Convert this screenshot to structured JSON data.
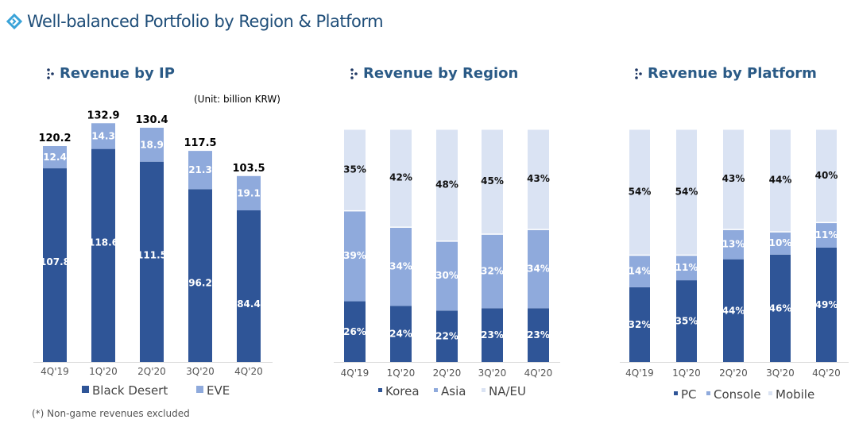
{
  "page": {
    "title": "Well-balanced Portfolio by Region & Platform",
    "footnote": "(*) Non-game revenues excluded",
    "colors": {
      "title": "#1f4e79",
      "title_icon": "#3aa3d8",
      "section_title": "#2a5a86",
      "dark_blue": "#2f5597",
      "mid_blue": "#8faadc",
      "light_blue": "#dae3f3",
      "axis": "#d9d9d9"
    }
  },
  "chart_data": [
    {
      "type": "bar",
      "stacked": true,
      "title": "Revenue by IP",
      "unit_note": "(Unit: billion KRW)",
      "categories": [
        "4Q'19",
        "1Q'20",
        "2Q'20",
        "3Q'20",
        "4Q'20"
      ],
      "series": [
        {
          "name": "Black Desert",
          "values": [
            107.8,
            118.6,
            111.5,
            96.2,
            84.4
          ],
          "labels": [
            "107.8",
            "118.6",
            "111.5",
            "96.2",
            "84.4"
          ],
          "color": "#2f5597"
        },
        {
          "name": "EVE",
          "values": [
            12.4,
            14.3,
            18.9,
            21.3,
            19.1
          ],
          "labels": [
            "12.4",
            "14.3",
            "18.9",
            "21.3",
            "19.1"
          ],
          "color": "#8faadc"
        }
      ],
      "totals": [
        120.2,
        132.9,
        130.4,
        117.5,
        103.5
      ],
      "total_labels": [
        "120.2",
        "132.9",
        "130.4",
        "117.5",
        "103.5"
      ],
      "ylim": [
        0,
        140
      ],
      "grid": false,
      "legend": "bottom"
    },
    {
      "type": "bar",
      "stacked": true,
      "percent": true,
      "title": "Revenue by Region",
      "categories": [
        "4Q'19",
        "1Q'20",
        "2Q'20",
        "3Q'20",
        "4Q'20"
      ],
      "series": [
        {
          "name": "Korea",
          "values": [
            26,
            24,
            22,
            23,
            23
          ],
          "labels": [
            "26%",
            "24%",
            "22%",
            "23%",
            "23%"
          ],
          "color": "#2f5597"
        },
        {
          "name": "Asia",
          "values": [
            39,
            34,
            30,
            32,
            34
          ],
          "labels": [
            "39%",
            "34%",
            "30%",
            "32%",
            "34%"
          ],
          "color": "#8faadc"
        },
        {
          "name": "NA/EU",
          "values": [
            35,
            42,
            48,
            45,
            43
          ],
          "labels": [
            "35%",
            "42%",
            "48%",
            "45%",
            "43%"
          ],
          "color": "#dae3f3"
        }
      ],
      "ylim": [
        0,
        100
      ],
      "grid": false,
      "legend": "bottom"
    },
    {
      "type": "bar",
      "stacked": true,
      "percent": true,
      "title": "Revenue by Platform",
      "categories": [
        "4Q'19",
        "1Q'20",
        "2Q'20",
        "3Q'20",
        "4Q'20"
      ],
      "series": [
        {
          "name": "PC",
          "values": [
            32,
            35,
            44,
            46,
            49
          ],
          "labels": [
            "32%",
            "35%",
            "44%",
            "46%",
            "49%"
          ],
          "color": "#2f5597"
        },
        {
          "name": "Console",
          "values": [
            14,
            11,
            13,
            10,
            11
          ],
          "labels": [
            "14%",
            "11%",
            "13%",
            "10%",
            "11%"
          ],
          "color": "#8faadc"
        },
        {
          "name": "Mobile",
          "values": [
            54,
            54,
            43,
            44,
            40
          ],
          "labels": [
            "54%",
            "54%",
            "43%",
            "44%",
            "40%"
          ],
          "color": "#dae3f3"
        }
      ],
      "ylim": [
        0,
        100
      ],
      "grid": false,
      "legend": "bottom"
    }
  ]
}
